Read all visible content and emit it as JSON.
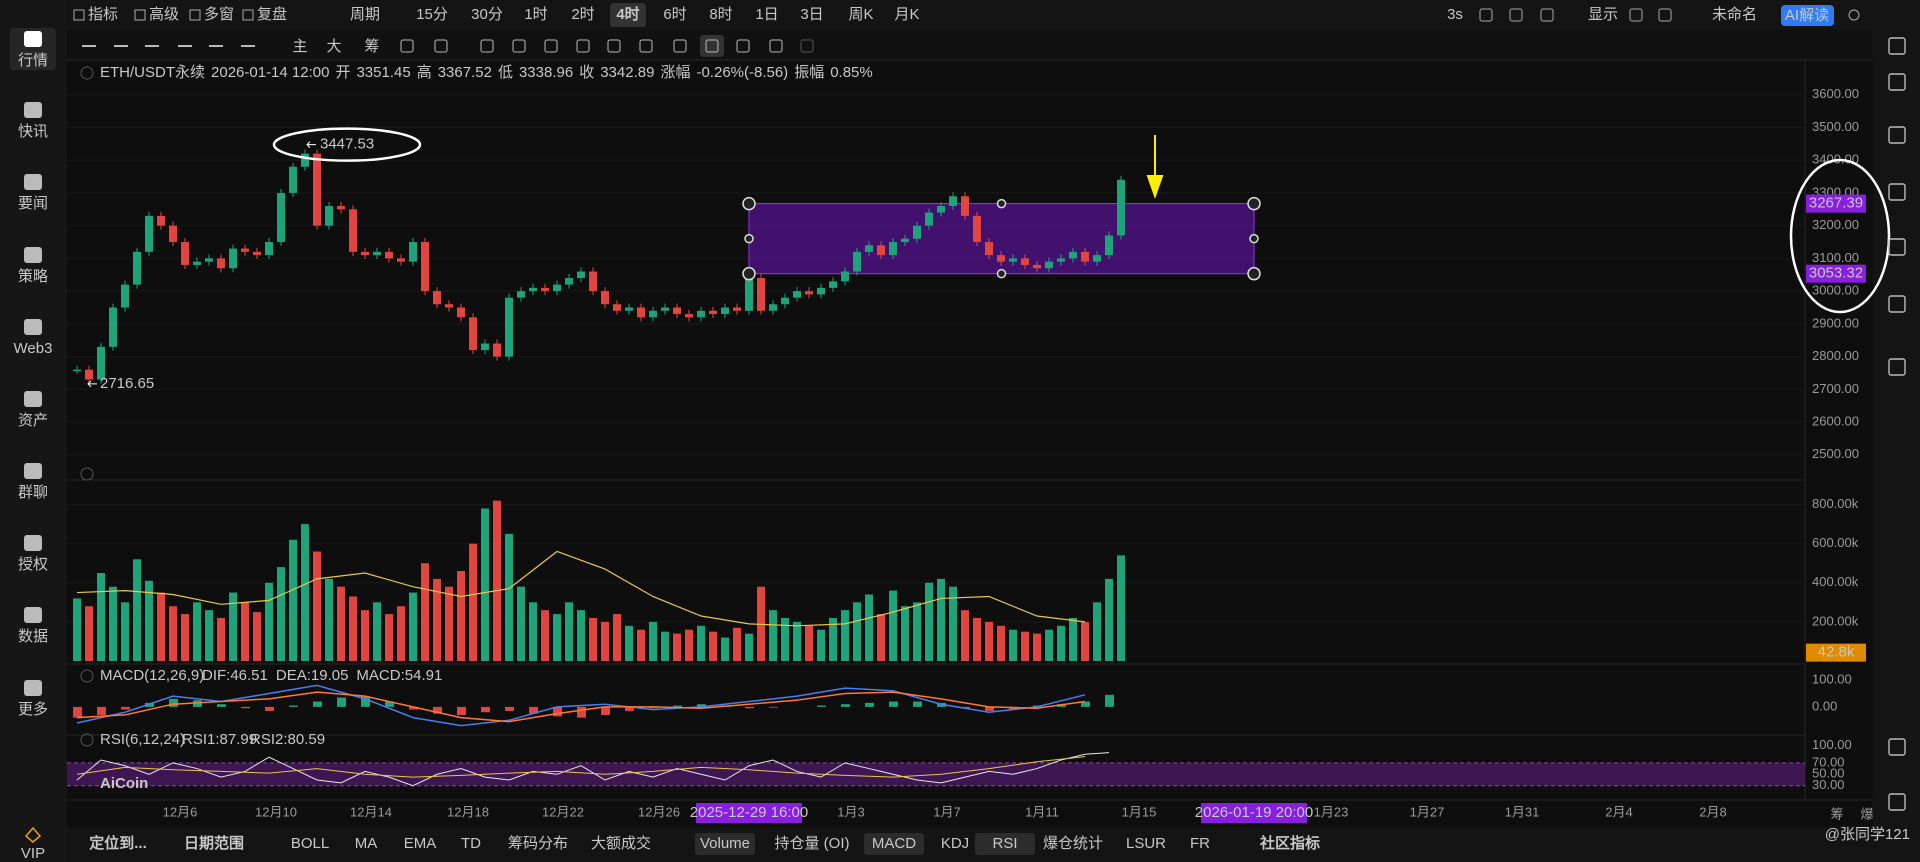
{
  "sidebar": {
    "items": [
      "行情",
      "快讯",
      "要闻",
      "策略",
      "Web3",
      "资产",
      "群聊",
      "授权",
      "数据",
      "更多"
    ],
    "vip": "VIP"
  },
  "top_bar": {
    "left": [
      "指标",
      "高级",
      "多窗",
      "复盘"
    ],
    "period_label": "周期",
    "periods": [
      "15分",
      "30分",
      "1时",
      "2时",
      "4时",
      "6时",
      "8时",
      "1日",
      "3日",
      "周K",
      "月K"
    ],
    "active_period": "4时",
    "refresh": "3s",
    "display": "显示",
    "layout_name": "未命名",
    "ai": "AI解读"
  },
  "toolbar": {
    "tags": [
      "主",
      "大",
      "筹"
    ]
  },
  "info_bar": {
    "symbol": "ETH/USDT永续",
    "time": "2026-01-14 12:00",
    "fields": [
      {
        "label": "开",
        "value": 3351.45
      },
      {
        "label": "高",
        "value": 3367.52
      },
      {
        "label": "低",
        "value": 3338.96
      },
      {
        "label": "收",
        "value": 3342.89
      },
      {
        "label": "涨幅",
        "value": "-0.26%(-8.56)"
      },
      {
        "label": "振幅",
        "value": "0.85%"
      }
    ]
  },
  "price_chart": {
    "ylim": [
      2478,
      3700
    ],
    "yticks": [
      {
        "value": 2500,
        "label": "2500.00"
      },
      {
        "value": 2600,
        "label": "2600.00"
      },
      {
        "value": 2700,
        "label": "2700.00"
      },
      {
        "value": 2800,
        "label": "2800.00"
      },
      {
        "value": 2900,
        "label": "2900.00"
      },
      {
        "value": 3000,
        "label": "3000.00"
      },
      {
        "value": 3100,
        "label": "3100.00"
      },
      {
        "value": 3200,
        "label": "3200.00"
      },
      {
        "value": 3300,
        "label": "3300.00"
      },
      {
        "value": 3400,
        "label": "3400.00"
      },
      {
        "value": 3500,
        "label": "3500.00"
      },
      {
        "value": 3600,
        "label": "3600.00"
      }
    ],
    "closes": [
      2760,
      2730,
      2830,
      2950,
      3020,
      3120,
      3230,
      3200,
      3150,
      3080,
      3090,
      3100,
      3070,
      3130,
      3120,
      3110,
      3150,
      3300,
      3380,
      3420,
      3200,
      3260,
      3250,
      3120,
      3110,
      3120,
      3100,
      3090,
      3150,
      3000,
      2960,
      2950,
      2920,
      2820,
      2840,
      2800,
      2980,
      3000,
      3010,
      3000,
      3020,
      3040,
      3060,
      3000,
      2960,
      2940,
      2950,
      2920,
      2940,
      2950,
      2930,
      2920,
      2940,
      2930,
      2950,
      2940,
      3040,
      2940,
      2960,
      2980,
      3000,
      2990,
      3010,
      3030,
      3060,
      3120,
      3140,
      3110,
      3150,
      3160,
      3200,
      3240,
      3260,
      3290,
      3230,
      3150,
      3110,
      3090,
      3100,
      3080,
      3070,
      3090,
      3100,
      3120,
      3090,
      3110,
      3170,
      3340
    ],
    "high_marker": 3447.53,
    "low_marker": 2716.65,
    "range_box": {
      "top": 3267.39,
      "bottom": 3053.32,
      "start": "2025-12-29 16:00",
      "end": "2026-01-19 20:00"
    },
    "x_labels": [
      "12月6",
      "12月10",
      "12月14",
      "12月18",
      "12月22",
      "12月26",
      "1月3",
      "1月7",
      "1月11",
      "1月15",
      "1月23",
      "1月27",
      "1月31",
      "2月4",
      "2月8"
    ],
    "axis_corner": [
      "筹",
      "爆"
    ]
  },
  "volume_panel": {
    "ylim": [
      0,
      900000
    ],
    "yticks": [
      {
        "value": 200000,
        "label": "200.00k"
      },
      {
        "value": 400000,
        "label": "400.00k"
      },
      {
        "value": 600000,
        "label": "600.00k"
      },
      {
        "value": 800000,
        "label": "800.00k"
      }
    ],
    "values": [
      320000,
      280000,
      450000,
      380000,
      300000,
      520000,
      410000,
      350000,
      280000,
      240000,
      300000,
      260000,
      220000,
      350000,
      300000,
      250000,
      400000,
      480000,
      620000,
      700000,
      560000,
      420000,
      380000,
      330000,
      260000,
      300000,
      240000,
      280000,
      350000,
      500000,
      420000,
      380000,
      460000,
      600000,
      780000,
      820000,
      650000,
      380000,
      300000,
      260000,
      240000,
      300000,
      260000,
      220000,
      200000,
      240000,
      180000,
      160000,
      200000,
      150000,
      140000,
      160000,
      180000,
      150000,
      120000,
      170000,
      140000,
      380000,
      260000,
      220000,
      200000,
      180000,
      160000,
      220000,
      260000,
      300000,
      340000,
      240000,
      360000,
      280000,
      300000,
      400000,
      420000,
      380000,
      260000,
      220000,
      200000,
      180000,
      160000,
      150000,
      140000,
      160000,
      180000,
      220000,
      200000,
      300000,
      420000,
      540000
    ],
    "ma": [
      350000,
      360000,
      340000,
      290000,
      310000,
      420000,
      450000,
      380000,
      330000,
      370000,
      560000,
      470000,
      330000,
      230000,
      190000,
      180000,
      190000,
      250000,
      320000,
      330000,
      230000,
      200000
    ],
    "last": {
      "value": 42800,
      "label": "42.8k"
    }
  },
  "macd_panel": {
    "title": "MACD(12,26,9)",
    "legend": [
      "DIF:46.51",
      "DEA:19.05",
      "MACD:54.91"
    ],
    "ylim": [
      -75,
      145
    ],
    "yticks": [
      {
        "value": 0,
        "label": "0.00"
      },
      {
        "value": 100,
        "label": "100.00"
      }
    ],
    "hist": [
      -40,
      -30,
      -10,
      15,
      30,
      25,
      10,
      -5,
      -15,
      5,
      20,
      35,
      40,
      20,
      -10,
      -25,
      -30,
      -20,
      -15,
      -25,
      -35,
      -40,
      -30,
      -15,
      -5,
      5,
      10,
      5,
      -5,
      -3,
      0,
      5,
      10,
      15,
      20,
      20,
      15,
      -5,
      -15,
      -10,
      5,
      10,
      20,
      45
    ],
    "dif": [
      -60,
      -20,
      40,
      20,
      50,
      80,
      30,
      -40,
      -70,
      -50,
      0,
      10,
      -10,
      0,
      20,
      40,
      70,
      60,
      10,
      -20,
      0,
      45
    ],
    "dea": [
      -40,
      -30,
      10,
      20,
      30,
      55,
      40,
      0,
      -40,
      -55,
      -25,
      0,
      0,
      -5,
      10,
      25,
      50,
      55,
      30,
      0,
      -5,
      20
    ]
  },
  "rsi_panel": {
    "title": "RSI(6,12,24)",
    "legend": [
      "RSI1:87.99",
      "RSI2:80.59"
    ],
    "ylim": [
      12,
      110
    ],
    "yticks": [
      {
        "value": 30,
        "label": "30.00"
      },
      {
        "value": 50,
        "label": "50.00"
      },
      {
        "value": 70,
        "label": "70.00"
      },
      {
        "value": 100,
        "label": "100.00"
      }
    ],
    "band": [
      30,
      70
    ],
    "rsi1": [
      40,
      75,
      65,
      50,
      70,
      60,
      45,
      55,
      80,
      60,
      40,
      35,
      55,
      45,
      30,
      50,
      60,
      45,
      40,
      55,
      50,
      65,
      40,
      55,
      45,
      60,
      50,
      40,
      65,
      75,
      55,
      45,
      70,
      60,
      50,
      40,
      35,
      45,
      55,
      50,
      60,
      75,
      85,
      88
    ],
    "rsi2": [
      50,
      62,
      58,
      55,
      52,
      60,
      50,
      45,
      48,
      52,
      55,
      50,
      55,
      62,
      58,
      52,
      48,
      45,
      50,
      60,
      72,
      81
    ]
  },
  "bottom_bar": {
    "items": [
      {
        "text": "定位到...",
        "active": false
      },
      {
        "text": "日期范围",
        "active": false
      },
      {
        "text": "BOLL",
        "active": false
      },
      {
        "text": "MA",
        "active": false
      },
      {
        "text": "EMA",
        "active": false
      },
      {
        "text": "TD",
        "active": false
      },
      {
        "text": "筹码分布",
        "active": false
      },
      {
        "text": "大额成交",
        "active": false
      },
      {
        "text": "Volume",
        "active": true
      },
      {
        "text": "持仓量 (OI)",
        "active": false
      },
      {
        "text": "MACD",
        "active": true
      },
      {
        "text": "KDJ",
        "active": false
      },
      {
        "text": "RSI",
        "active": true
      },
      {
        "text": "爆仓统计",
        "active": false
      },
      {
        "text": "LSUR",
        "active": false
      },
      {
        "text": "FR",
        "active": false
      },
      {
        "text": "社区指标",
        "active": false
      }
    ]
  },
  "watermarks": {
    "logo": "AiCoin",
    "author": "@张同学121"
  }
}
